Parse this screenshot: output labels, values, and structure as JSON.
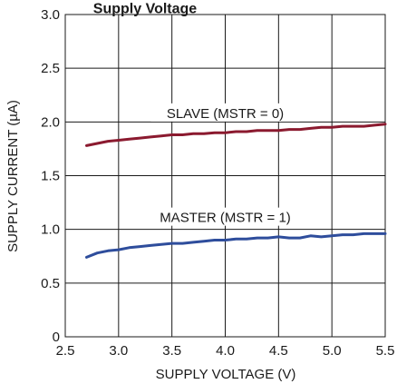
{
  "chart_data": {
    "type": "line",
    "title": "Supply Voltage",
    "xlabel": "SUPPLY VOLTAGE (V)",
    "ylabel": "SUPPLY CURRENT (µA)",
    "xlim": [
      2.5,
      5.5
    ],
    "ylim": [
      0,
      3.0
    ],
    "xticks": [
      "2.5",
      "3.0",
      "3.5",
      "4.0",
      "4.5",
      "5.0",
      "5.5"
    ],
    "yticks": [
      "0",
      "0.5",
      "1.0",
      "1.5",
      "2.0",
      "2.5",
      "3.0"
    ],
    "grid": true,
    "series": [
      {
        "name": "SLAVE (MSTR = 0)",
        "color": "#8b1a2f",
        "x": [
          2.7,
          2.8,
          2.9,
          3.0,
          3.1,
          3.2,
          3.3,
          3.4,
          3.5,
          3.6,
          3.7,
          3.8,
          3.9,
          4.0,
          4.1,
          4.2,
          4.3,
          4.4,
          4.5,
          4.6,
          4.7,
          4.8,
          4.9,
          5.0,
          5.1,
          5.2,
          5.3,
          5.4,
          5.5
        ],
        "y": [
          1.78,
          1.8,
          1.82,
          1.83,
          1.84,
          1.85,
          1.86,
          1.87,
          1.88,
          1.88,
          1.89,
          1.89,
          1.9,
          1.9,
          1.91,
          1.91,
          1.92,
          1.92,
          1.92,
          1.93,
          1.93,
          1.94,
          1.95,
          1.95,
          1.96,
          1.96,
          1.96,
          1.97,
          1.98
        ]
      },
      {
        "name": "MASTER (MSTR = 1)",
        "color": "#2e4d9c",
        "x": [
          2.7,
          2.8,
          2.9,
          3.0,
          3.1,
          3.2,
          3.3,
          3.4,
          3.5,
          3.6,
          3.7,
          3.8,
          3.9,
          4.0,
          4.1,
          4.2,
          4.3,
          4.4,
          4.5,
          4.6,
          4.7,
          4.8,
          4.9,
          5.0,
          5.1,
          5.2,
          5.3,
          5.4,
          5.5
        ],
        "y": [
          0.74,
          0.78,
          0.8,
          0.81,
          0.83,
          0.84,
          0.85,
          0.86,
          0.87,
          0.87,
          0.88,
          0.89,
          0.9,
          0.9,
          0.91,
          0.91,
          0.92,
          0.92,
          0.93,
          0.92,
          0.92,
          0.94,
          0.93,
          0.94,
          0.95,
          0.95,
          0.96,
          0.96,
          0.96
        ]
      }
    ],
    "annotations": [
      "SLAVE (MSTR = 0)",
      "MASTER (MSTR = 1)"
    ]
  }
}
